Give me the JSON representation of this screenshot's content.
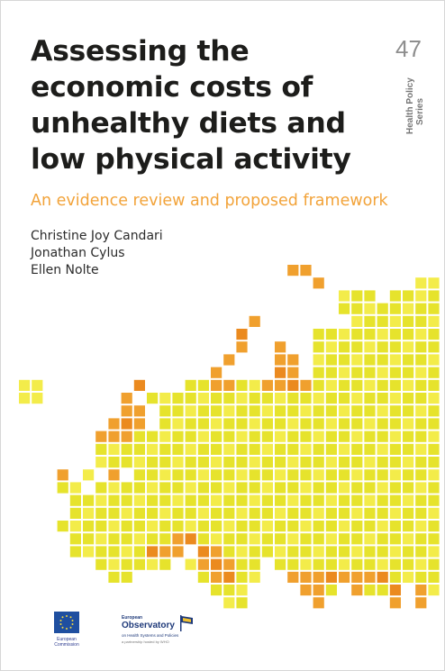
{
  "cover": {
    "title_lines": [
      "Assessing the",
      "economic costs of",
      "unhealthy diets and",
      "low physical activity"
    ],
    "series_number": "47",
    "series_label_lines": [
      "Health Policy",
      "Series"
    ],
    "subtitle": "An evidence review and proposed framework",
    "authors": [
      "Christine Joy Candari",
      "Jonathan Cylus",
      "Ellen Nolte"
    ],
    "colors": {
      "title": "#1d1d1b",
      "subtitle": "#f2a33a",
      "tile_yellow": "#e6e32c",
      "tile_light": "#f3ec4a",
      "tile_orange": "#f0a02e",
      "tile_dark_orange": "#eb8a1f"
    }
  },
  "logos": {
    "ec": {
      "text_lines": [
        "European",
        "Commission"
      ],
      "icon": "eu-flag-icon"
    },
    "observatory": {
      "top_text": "European",
      "name": "Observatory",
      "subtitle": "on Health Systems and Policies",
      "tagline": "a partnership hosted by WHO",
      "icon": "observatory-flag-icon"
    }
  }
}
